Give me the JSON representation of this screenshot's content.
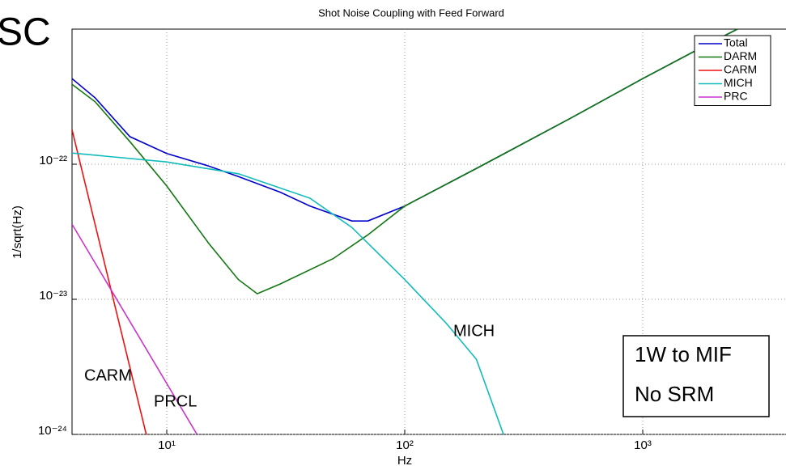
{
  "chart_data": {
    "type": "line",
    "title": "Shot Noise Coupling with Feed Forward",
    "xlabel": "Hz",
    "ylabel": "1/sqrt(Hz)",
    "xscale": "log",
    "yscale": "log",
    "xlim": [
      4,
      4000
    ],
    "ylim": [
      1e-24,
      1e-21
    ],
    "xticks": [
      {
        "value": 10,
        "label": "10¹"
      },
      {
        "value": 100,
        "label": "10²"
      },
      {
        "value": 1000,
        "label": "10³"
      }
    ],
    "yticks": [
      {
        "value": 1e-24,
        "label": "10⁻²⁴"
      },
      {
        "value": 1e-23,
        "label": "10⁻²³"
      },
      {
        "value": 1e-22,
        "label": "10⁻²²"
      }
    ],
    "grid": true,
    "legend": "upper right",
    "series": [
      {
        "name": "Total",
        "color": "#0000cc",
        "x": [
          4,
          5,
          7,
          10,
          15,
          20,
          30,
          40,
          60,
          70,
          100,
          200,
          500,
          1000,
          2000,
          2500
        ],
        "values": [
          4.3e-22,
          3.1e-22,
          1.6e-22,
          1.2e-22,
          9.7e-23,
          8.1e-23,
          6.2e-23,
          4.9e-23,
          3.8e-23,
          3.8e-23,
          4.9e-23,
          9.3e-23,
          2.2e-22,
          4.3e-22,
          8.2e-22,
          1e-21
        ]
      },
      {
        "name": "DARM",
        "color": "#117711",
        "x": [
          4,
          5,
          7,
          10,
          15,
          20,
          24,
          30,
          50,
          70,
          100,
          200,
          500,
          1000,
          2000,
          2500
        ],
        "values": [
          3.9e-22,
          2.9e-22,
          1.47e-22,
          6.9e-23,
          2.6e-23,
          1.4e-23,
          1.1e-23,
          1.3e-23,
          2e-23,
          3e-23,
          4.9e-23,
          9.3e-23,
          2.2e-22,
          4.3e-22,
          8.2e-22,
          1e-21
        ]
      },
      {
        "name": "CARM",
        "color": "#ee1111",
        "x": [
          4,
          8.2
        ],
        "values": [
          1.8e-22,
          1e-24
        ]
      },
      {
        "name": "MICH",
        "color": "#11bbbb",
        "x": [
          4,
          10,
          20,
          40,
          60,
          100,
          150,
          200,
          260
        ],
        "values": [
          1.21e-22,
          1.04e-22,
          8.5e-23,
          5.6e-23,
          3.4e-23,
          1.4e-23,
          6.6e-24,
          3.6e-24,
          1e-24
        ]
      },
      {
        "name": "PRC",
        "color": "#cc33cc",
        "x": [
          4,
          13.4
        ],
        "values": [
          3.6e-23,
          1e-24
        ]
      }
    ],
    "annotations": [
      {
        "text": "SC",
        "color": "#ee1111"
      },
      {
        "text": "MICH",
        "color": "#11aadd"
      },
      {
        "text": "CARM",
        "color": "#ee1111"
      },
      {
        "text": "PRCL",
        "color": "#cc33cc"
      },
      {
        "text": "1W to MIF"
      },
      {
        "text": "No SRM"
      }
    ]
  }
}
